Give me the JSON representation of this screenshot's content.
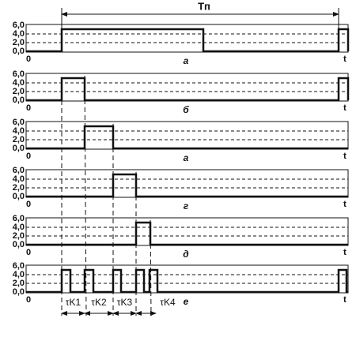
{
  "period_label": "Tп",
  "panels": [
    {
      "yticks": [
        "6,0",
        "4,0",
        "2,0",
        "0,0"
      ],
      "origin": "0",
      "axis": "t",
      "caption": "а"
    },
    {
      "yticks": [
        "6,0",
        "4,0",
        "2,0",
        "0,0"
      ],
      "origin": "0",
      "axis": "t",
      "caption": "б"
    },
    {
      "yticks": [
        "6,0",
        "4,0",
        "2,0",
        "0,0"
      ],
      "origin": "0",
      "axis": "t",
      "caption": "а"
    },
    {
      "yticks": [
        "6,0",
        "4,0",
        "2,0",
        "0,0"
      ],
      "origin": "0",
      "axis": "t",
      "caption": "г"
    },
    {
      "yticks": [
        "6,0",
        "4,0",
        "2,0",
        "0,0"
      ],
      "origin": "0",
      "axis": "t",
      "caption": "д"
    },
    {
      "yticks": [
        "6,0",
        "4,0",
        "2,0",
        "0,0"
      ],
      "origin": "0",
      "axis": "t",
      "caption": "е"
    }
  ],
  "intervals": [
    "τK1",
    "τK2",
    "τK3",
    "τK4"
  ]
}
